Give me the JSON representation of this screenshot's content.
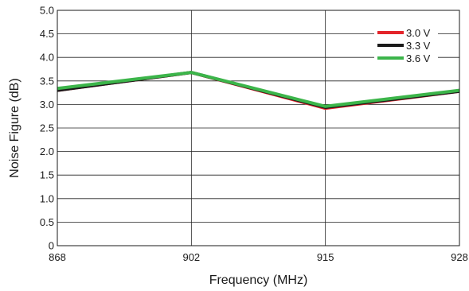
{
  "chart_data": {
    "type": "line",
    "title": "",
    "xlabel": "Frequency (MHz)",
    "ylabel": "Noise Figure (dB)",
    "x": [
      868,
      902,
      915,
      928
    ],
    "x_tick_labels": [
      "868",
      "902",
      "915",
      "928"
    ],
    "ylim": [
      0,
      5.0
    ],
    "y_ticks": [
      0,
      0.5,
      1.0,
      1.5,
      2.0,
      2.5,
      3.0,
      3.5,
      4.0,
      4.5,
      5.0
    ],
    "y_tick_labels": [
      "0",
      "0.5",
      "1.0",
      "1.5",
      "2.0",
      "2.5",
      "3.0",
      "3.5",
      "4.0",
      "4.5",
      "5.0"
    ],
    "grid": true,
    "legend_position": "top-right",
    "series": [
      {
        "name": "3.0 V",
        "color": "#e3242b",
        "values": [
          3.3,
          3.68,
          2.92,
          3.28
        ]
      },
      {
        "name": "3.3 V",
        "color": "#1a1a1a",
        "values": [
          3.3,
          3.68,
          2.94,
          3.28
        ]
      },
      {
        "name": "3.6 V",
        "color": "#3cb54a",
        "values": [
          3.34,
          3.68,
          2.96,
          3.3
        ]
      }
    ]
  }
}
